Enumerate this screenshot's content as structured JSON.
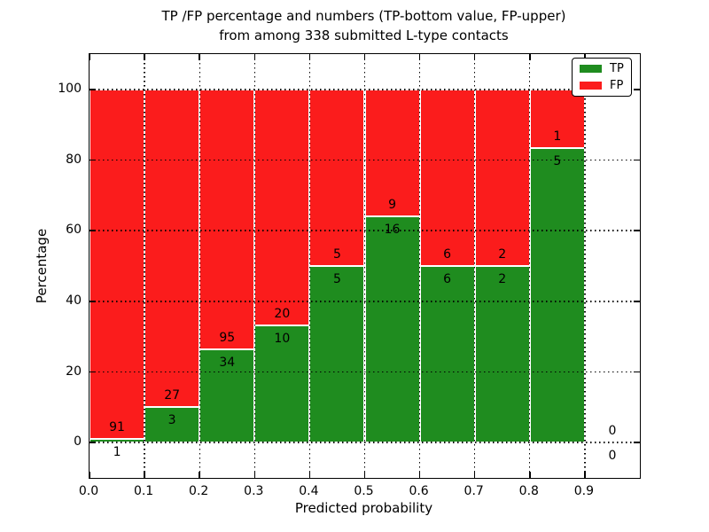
{
  "title": {
    "line1": "TP /FP percentage and numbers (TP-bottom value, FP-upper)",
    "line2": "from among 338 submitted L-type contacts"
  },
  "axes": {
    "xlabel": "Predicted probability",
    "ylabel": "Percentage",
    "xticks": [
      "0.0",
      "0.1",
      "0.2",
      "0.3",
      "0.4",
      "0.5",
      "0.6",
      "0.7",
      "0.8",
      "0.9"
    ],
    "yticks": [
      0,
      20,
      40,
      60,
      80,
      100
    ],
    "xlim": [
      0.0,
      1.0
    ],
    "ylim": [
      -10,
      110
    ],
    "grid": "dotted"
  },
  "legend": {
    "position": "upper-right",
    "items": [
      {
        "label": "TP",
        "color": "#1f8c1f"
      },
      {
        "label": "FP",
        "color": "#fb1c1c"
      }
    ]
  },
  "colors": {
    "tp": "#1f8c1f",
    "fp": "#fb1c1c",
    "bar_edge": "#ffffff",
    "grid": "#000000",
    "frame": "#000000",
    "background": "#ffffff"
  },
  "chart_data": {
    "type": "bar",
    "stacked": true,
    "title": "TP /FP percentage and numbers (TP-bottom value, FP-upper) from among 338 submitted L-type contacts",
    "xlabel": "Predicted probability",
    "ylabel": "Percentage",
    "ylim": [
      -10,
      110
    ],
    "total_submitted": 338,
    "series_names": [
      "TP",
      "FP"
    ],
    "x_bins": [
      {
        "x0": 0.0,
        "x1": 0.1,
        "tp_count": 1,
        "fp_count": 91,
        "tp_pct": 1.1,
        "fp_pct": 98.9
      },
      {
        "x0": 0.1,
        "x1": 0.2,
        "tp_count": 3,
        "fp_count": 27,
        "tp_pct": 10.0,
        "fp_pct": 90.0
      },
      {
        "x0": 0.2,
        "x1": 0.3,
        "tp_count": 34,
        "fp_count": 95,
        "tp_pct": 26.4,
        "fp_pct": 73.6
      },
      {
        "x0": 0.3,
        "x1": 0.4,
        "tp_count": 10,
        "fp_count": 20,
        "tp_pct": 33.3,
        "fp_pct": 66.7
      },
      {
        "x0": 0.4,
        "x1": 0.5,
        "tp_count": 5,
        "fp_count": 5,
        "tp_pct": 50.0,
        "fp_pct": 50.0
      },
      {
        "x0": 0.5,
        "x1": 0.6,
        "tp_count": 16,
        "fp_count": 9,
        "tp_pct": 64.0,
        "fp_pct": 36.0
      },
      {
        "x0": 0.6,
        "x1": 0.7,
        "tp_count": 6,
        "fp_count": 6,
        "tp_pct": 50.0,
        "fp_pct": 50.0
      },
      {
        "x0": 0.7,
        "x1": 0.8,
        "tp_count": 2,
        "fp_count": 2,
        "tp_pct": 50.0,
        "fp_pct": 50.0
      },
      {
        "x0": 0.8,
        "x1": 0.9,
        "tp_count": 5,
        "fp_count": 1,
        "tp_pct": 83.3,
        "fp_pct": 16.7
      },
      {
        "x0": 0.9,
        "x1": 1.0,
        "tp_count": 0,
        "fp_count": 0,
        "tp_pct": 0,
        "fp_pct": 0
      }
    ]
  }
}
